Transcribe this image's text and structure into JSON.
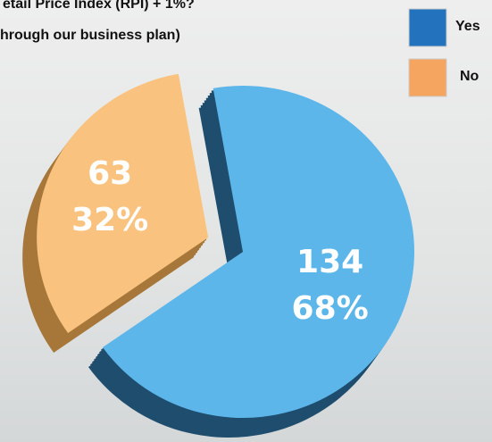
{
  "chart_data": {
    "type": "pie",
    "title_lines": [
      "etail Price Index (RPI) + 1%?",
      "hrough our business plan)"
    ],
    "categories": [
      "Yes",
      "No"
    ],
    "values": [
      134,
      63
    ],
    "shares": [
      68,
      32
    ],
    "share_labels": [
      "68%",
      "32%"
    ],
    "colors": [
      "#5db6ea",
      "#f9c27f"
    ],
    "side_colors": [
      "#1e4d6e",
      "#a7773a"
    ],
    "legend_colors": [
      "#2272bd",
      "#f5a560"
    ],
    "legend": "top-right"
  }
}
